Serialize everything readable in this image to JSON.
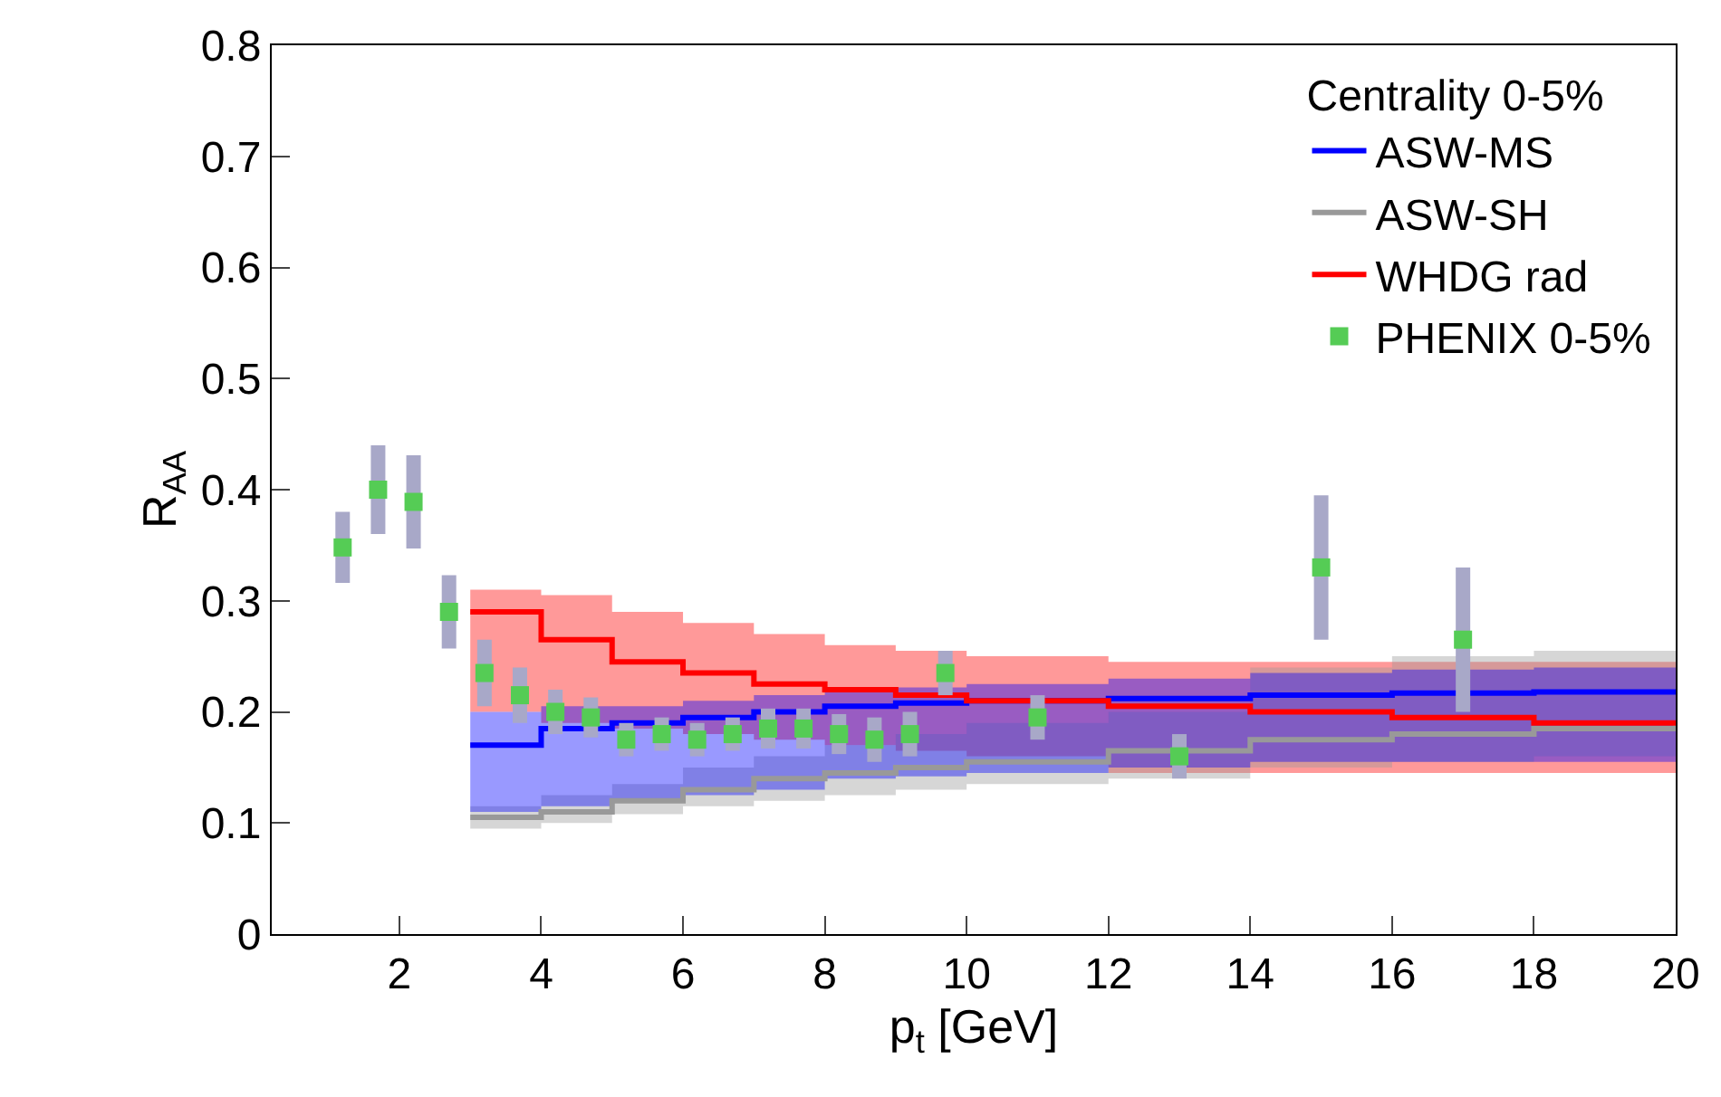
{
  "chart_data": {
    "type": "step",
    "xlabel": "p$_{t}$ [GeV]",
    "ylabel": "R$_{AA}$",
    "legend_title": "Centrality 0-5%",
    "legend": "top right",
    "xlim": [
      0.2,
      20
    ],
    "xticks": [
      2,
      4,
      6,
      8,
      10,
      12,
      14,
      16,
      18,
      20
    ],
    "ylim": [
      0,
      0.8
    ],
    "yticks": [
      0,
      0.1,
      0.2,
      0.3,
      0.4,
      0.5,
      0.6,
      0.7,
      0.8
    ],
    "series": [
      {
        "name": "ASW-MS",
        "color": "#0000ff",
        "x": [
          3,
          4,
          5,
          6,
          7,
          8,
          9,
          10,
          12,
          14,
          16,
          18,
          20
        ],
        "values": [
          0.17,
          0.185,
          0.19,
          0.195,
          0.2,
          0.205,
          0.208,
          0.21,
          0.212,
          0.215,
          0.217,
          0.218,
          0.218
        ],
        "lower": [
          0.11,
          0.115,
          0.12,
          0.125,
          0.13,
          0.14,
          0.142,
          0.145,
          0.15,
          0.155,
          0.155,
          0.155,
          0.155
        ],
        "upper": [
          0.2,
          0.205,
          0.205,
          0.21,
          0.215,
          0.22,
          0.222,
          0.225,
          0.23,
          0.235,
          0.238,
          0.24,
          0.24
        ]
      },
      {
        "name": "ASW-SH",
        "color": "#999999",
        "x": [
          3,
          4,
          5,
          6,
          7,
          8,
          9,
          10,
          12,
          14,
          16,
          18,
          20
        ],
        "values": [
          0.105,
          0.11,
          0.12,
          0.13,
          0.14,
          0.145,
          0.15,
          0.155,
          0.165,
          0.175,
          0.18,
          0.185,
          0.19
        ],
        "lower": [
          0.095,
          0.1,
          0.108,
          0.115,
          0.12,
          0.125,
          0.13,
          0.135,
          0.14,
          0.15,
          0.155,
          0.16,
          0.16
        ],
        "upper": [
          0.115,
          0.125,
          0.135,
          0.15,
          0.16,
          0.17,
          0.18,
          0.19,
          0.2,
          0.24,
          0.25,
          0.255,
          0.255
        ]
      },
      {
        "name": "WHDG rad",
        "color": "#ff0000",
        "x": [
          3,
          4,
          5,
          6,
          7,
          8,
          9,
          10,
          12,
          14,
          16,
          18,
          20
        ],
        "values": [
          0.29,
          0.265,
          0.245,
          0.235,
          0.225,
          0.22,
          0.215,
          0.21,
          0.205,
          0.2,
          0.195,
          0.19,
          0.19
        ],
        "lower": [
          0.2,
          0.19,
          0.185,
          0.18,
          0.175,
          0.17,
          0.165,
          0.16,
          0.145,
          0.145,
          0.145,
          0.145,
          0.145
        ],
        "upper": [
          0.31,
          0.305,
          0.29,
          0.28,
          0.27,
          0.26,
          0.255,
          0.25,
          0.245,
          0.245,
          0.245,
          0.245,
          0.245
        ]
      },
      {
        "name": "PHENIX 0-5%",
        "type": "scatter",
        "marker": "square",
        "color": "#55cc55",
        "x": [
          1.2,
          1.7,
          2.2,
          2.7,
          3.2,
          3.7,
          4.2,
          4.7,
          5.2,
          5.7,
          6.2,
          6.7,
          7.2,
          7.7,
          8.2,
          8.7,
          9.2,
          9.7,
          11,
          13,
          15,
          17
        ],
        "values": [
          0.348,
          0.4,
          0.389,
          0.29,
          0.235,
          0.215,
          0.2,
          0.195,
          0.175,
          0.18,
          0.175,
          0.18,
          0.185,
          0.185,
          0.18,
          0.175,
          0.18,
          0.235,
          0.195,
          0.16,
          0.33,
          0.265
        ],
        "errors": [
          0.032,
          0.04,
          0.042,
          0.033,
          0.03,
          0.025,
          0.02,
          0.018,
          0.015,
          0.015,
          0.015,
          0.015,
          0.018,
          0.018,
          0.018,
          0.02,
          0.02,
          0.02,
          0.02,
          0.02,
          0.065,
          0.065
        ]
      }
    ]
  }
}
